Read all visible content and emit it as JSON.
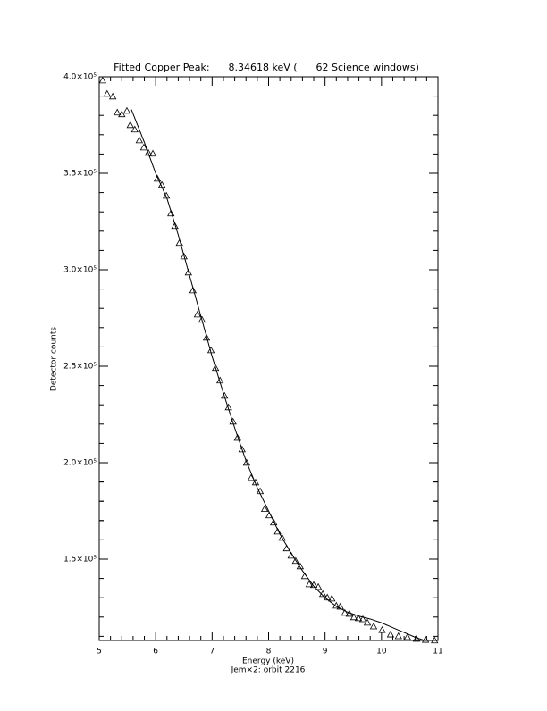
{
  "chart_data": {
    "type": "scatter",
    "title": "Fitted Copper Peak:      8.34618 keV (      62 Science windows)",
    "x_label": "Energy (keV)",
    "subtitle": "Jem×2: orbit 2216",
    "y_label": "Detector counts",
    "xlim": [
      5,
      11
    ],
    "xticks": [
      5,
      6,
      7,
      8,
      9,
      10,
      11
    ],
    "ylim": [
      107870,
      400000
    ],
    "yticks": [
      {
        "value": 150000,
        "label": "1.5×10⁵"
      },
      {
        "value": 200000,
        "label": "2.0×10⁵"
      },
      {
        "value": 250000,
        "label": "2.5×10⁵"
      },
      {
        "value": 300000,
        "label": "3.0×10⁵"
      },
      {
        "value": 350000,
        "label": "3.5×10⁵"
      },
      {
        "value": 400000,
        "label": "4.0×10⁵"
      }
    ],
    "series": [
      {
        "name": "Data",
        "color": "#000000",
        "x": [
          5.06,
          5.14,
          5.24,
          5.32,
          5.4,
          5.49,
          5.55,
          5.63,
          5.71,
          5.79,
          5.87,
          5.95,
          6.03,
          6.11,
          6.19,
          6.27,
          6.34,
          6.42,
          6.5,
          6.58,
          6.66,
          6.74,
          6.82,
          6.9,
          6.98,
          7.06,
          7.14,
          7.22,
          7.29,
          7.37,
          7.45,
          7.53,
          7.61,
          7.69,
          7.77,
          7.85,
          7.93,
          8.01,
          8.09,
          8.16,
          8.24,
          8.32,
          8.4,
          8.48,
          8.56,
          8.64,
          8.72,
          8.8,
          8.88,
          8.96,
          9.04,
          9.12,
          9.2,
          9.27,
          9.35,
          9.43,
          9.51,
          9.59,
          9.67,
          9.75,
          9.86,
          10.01,
          10.16,
          10.3,
          10.46,
          10.62,
          10.78,
          10.94
        ],
        "values": [
          398100,
          391200,
          389800,
          381500,
          380600,
          382400,
          375000,
          372700,
          367100,
          363400,
          360600,
          360200,
          347200,
          344000,
          338400,
          329200,
          322700,
          313900,
          306900,
          298600,
          289300,
          276800,
          274100,
          264800,
          258300,
          249100,
          242600,
          234700,
          228700,
          221300,
          212900,
          206900,
          200000,
          192100,
          189800,
          185200,
          176000,
          172700,
          169000,
          164300,
          161100,
          155600,
          151800,
          149100,
          146300,
          141200,
          137000,
          136600,
          135600,
          131900,
          130100,
          129600,
          125900,
          125400,
          122200,
          121700,
          119900,
          119400,
          118900,
          117100,
          115200,
          113300,
          111000,
          110100,
          109600,
          108700,
          108200,
          107900
        ]
      },
      {
        "name": "Fit",
        "color": "#000000",
        "x": [
          5.57,
          5.8,
          6.0,
          6.2,
          6.4,
          6.6,
          6.8,
          7.0,
          7.2,
          7.4,
          7.6,
          7.8,
          8.0,
          8.2,
          8.4,
          8.6,
          8.8,
          9.0,
          9.2,
          9.4,
          9.6,
          9.8,
          10.0,
          10.2,
          10.4,
          10.6,
          10.75
        ],
        "values": [
          383000,
          366000,
          350000,
          337000,
          318000,
          297000,
          276000,
          255000,
          236000,
          218000,
          201000,
          187000,
          175000,
          163000,
          153000,
          144000,
          136000,
          130000,
          125500,
          122500,
          120500,
          119000,
          117000,
          114500,
          112000,
          109500,
          108000
        ]
      }
    ]
  }
}
